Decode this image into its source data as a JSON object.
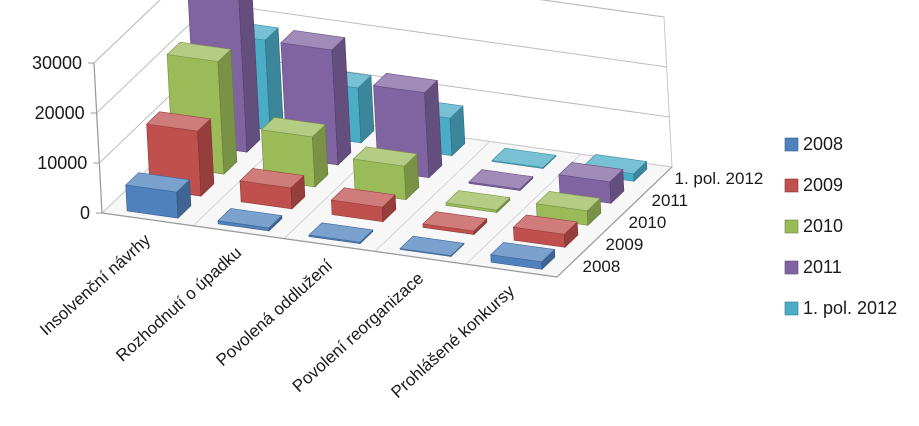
{
  "chart_data": {
    "type": "bar",
    "variant": "3d-column",
    "categories": [
      "Insolvenční návrhy",
      "Rozhodnutí o úpadku",
      "Povolená oddlužení",
      "Povolení reorganizace",
      "Prohlášené konkursy"
    ],
    "series": [
      {
        "name": "2008",
        "color": "#4f81bd",
        "values": [
          5200,
          600,
          300,
          150,
          1500
        ]
      },
      {
        "name": "2009",
        "color": "#c0504d",
        "values": [
          13000,
          4200,
          2900,
          700,
          2600
        ]
      },
      {
        "name": "2010",
        "color": "#9bbb59",
        "values": [
          22500,
          10000,
          6700,
          500,
          2900
        ]
      },
      {
        "name": "2011",
        "color": "#8064a2",
        "values": [
          32000,
          23000,
          17000,
          300,
          4300
        ]
      },
      {
        "name": "1. pol. 2012",
        "color": "#4bacc6",
        "values": [
          18000,
          11000,
          7500,
          100,
          1500
        ]
      }
    ],
    "y_ticks": [
      "0",
      "10000",
      "20000",
      "30000"
    ],
    "ylim": [
      0,
      30000
    ],
    "grid": true,
    "legend_position": "right"
  }
}
